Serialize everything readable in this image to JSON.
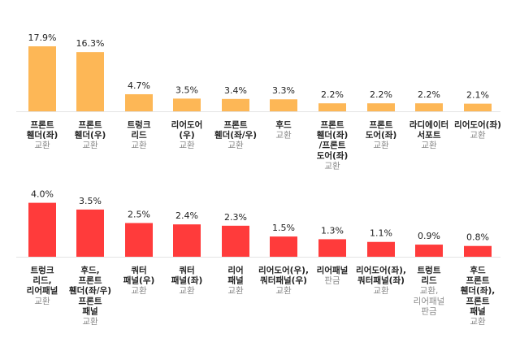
{
  "chart_data": [
    {
      "type": "bar",
      "color": "#FDB756",
      "ylim": [
        0,
        20
      ],
      "grid": false,
      "unit": "%",
      "bars": [
        {
          "value": 17.9,
          "value_label": "17.9%",
          "label_lines": [
            "프론트",
            "휀더(좌)"
          ],
          "sub_lines": [
            "교환"
          ]
        },
        {
          "value": 16.3,
          "value_label": "16.3%",
          "label_lines": [
            "프론트",
            "휀더(우)"
          ],
          "sub_lines": [
            "교환"
          ]
        },
        {
          "value": 4.7,
          "value_label": "4.7%",
          "label_lines": [
            "트렁크",
            "리드"
          ],
          "sub_lines": [
            "교환"
          ]
        },
        {
          "value": 3.5,
          "value_label": "3.5%",
          "label_lines": [
            "리어도어",
            "(우)"
          ],
          "sub_lines": [
            "교환"
          ]
        },
        {
          "value": 3.4,
          "value_label": "3.4%",
          "label_lines": [
            "프론트",
            "휀더(좌/우)"
          ],
          "sub_lines": [
            "교환"
          ]
        },
        {
          "value": 3.3,
          "value_label": "3.3%",
          "label_lines": [
            "후드"
          ],
          "sub_lines": [
            "교환"
          ]
        },
        {
          "value": 2.2,
          "value_label": "2.2%",
          "label_lines": [
            "프론트",
            "휀더(좌)",
            "/프론트",
            "도어(좌)"
          ],
          "sub_lines": [
            "교환"
          ]
        },
        {
          "value": 2.2,
          "value_label": "2.2%",
          "label_lines": [
            "프론트",
            "도어(좌)"
          ],
          "sub_lines": [
            "교환"
          ]
        },
        {
          "value": 2.2,
          "value_label": "2.2%",
          "label_lines": [
            "라디에이터",
            "서포트"
          ],
          "sub_lines": [
            "교환"
          ]
        },
        {
          "value": 2.1,
          "value_label": "2.1%",
          "label_lines": [
            "리어도어(좌)"
          ],
          "sub_lines": [
            "교환"
          ]
        }
      ]
    },
    {
      "type": "bar",
      "color": "#FF3B3B",
      "ylim": [
        0,
        20
      ],
      "grid": false,
      "unit": "%",
      "bars": [
        {
          "value": 4.0,
          "value_label": "4.0%",
          "label_lines": [
            "트렁크",
            "리드,",
            "리어패널"
          ],
          "sub_lines": [
            "교환"
          ]
        },
        {
          "value": 3.5,
          "value_label": "3.5%",
          "label_lines": [
            "후드,",
            "프론트",
            "휀더(좌/우)",
            "프론트",
            "패널"
          ],
          "sub_lines": [
            "교환"
          ]
        },
        {
          "value": 2.5,
          "value_label": "2.5%",
          "label_lines": [
            "쿼터",
            "패널(우)"
          ],
          "sub_lines": [
            "교환"
          ]
        },
        {
          "value": 2.4,
          "value_label": "2.4%",
          "label_lines": [
            "쿼터",
            "패널(좌)"
          ],
          "sub_lines": [
            "교환"
          ]
        },
        {
          "value": 2.3,
          "value_label": "2.3%",
          "label_lines": [
            "리어",
            "패널"
          ],
          "sub_lines": [
            "교환"
          ]
        },
        {
          "value": 1.5,
          "value_label": "1.5%",
          "label_lines": [
            "리어도어(우),",
            "쿼터패널(우)"
          ],
          "sub_lines": [
            "교환"
          ]
        },
        {
          "value": 1.3,
          "value_label": "1.3%",
          "label_lines": [
            "리어패널"
          ],
          "sub_lines": [
            "판금"
          ]
        },
        {
          "value": 1.1,
          "value_label": "1.1%",
          "label_lines": [
            "리어도어(좌),",
            "쿼터패널(좌)"
          ],
          "sub_lines": [
            "교환"
          ]
        },
        {
          "value": 0.9,
          "value_label": "0.9%",
          "label_lines": [
            "트렁트",
            "리드"
          ],
          "sub_lines": [
            "교환,",
            "리어패널",
            "판금"
          ]
        },
        {
          "value": 0.8,
          "value_label": "0.8%",
          "label_lines": [
            "후드",
            "프론트",
            "휀더(좌),",
            "프론트",
            "패널"
          ],
          "sub_lines": [
            "교환"
          ]
        }
      ]
    }
  ]
}
